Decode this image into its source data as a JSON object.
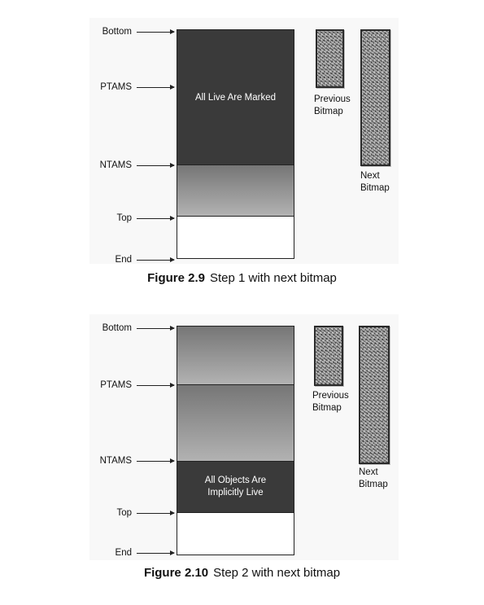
{
  "figure1": {
    "pointers": [
      "Bottom",
      "PTAMS",
      "NTAMS",
      "Top",
      "End"
    ],
    "region_text": "All Live Are Marked",
    "bitmap_labels": {
      "previous": [
        "Previous",
        "Bitmap"
      ],
      "next": [
        "Next",
        "Bitmap"
      ]
    },
    "caption": {
      "number": "Figure 2.9",
      "text": "Step 1 with next bitmap"
    }
  },
  "figure2": {
    "pointers": [
      "Bottom",
      "PTAMS",
      "NTAMS",
      "Top",
      "End"
    ],
    "region_text": [
      "All Objects Are",
      "Implicitly Live"
    ],
    "bitmap_labels": {
      "previous": [
        "Previous",
        "Bitmap"
      ],
      "next": [
        "Next",
        "Bitmap"
      ]
    },
    "caption": {
      "number": "Figure 2.10",
      "text": "Step 2 with next bitmap"
    }
  }
}
